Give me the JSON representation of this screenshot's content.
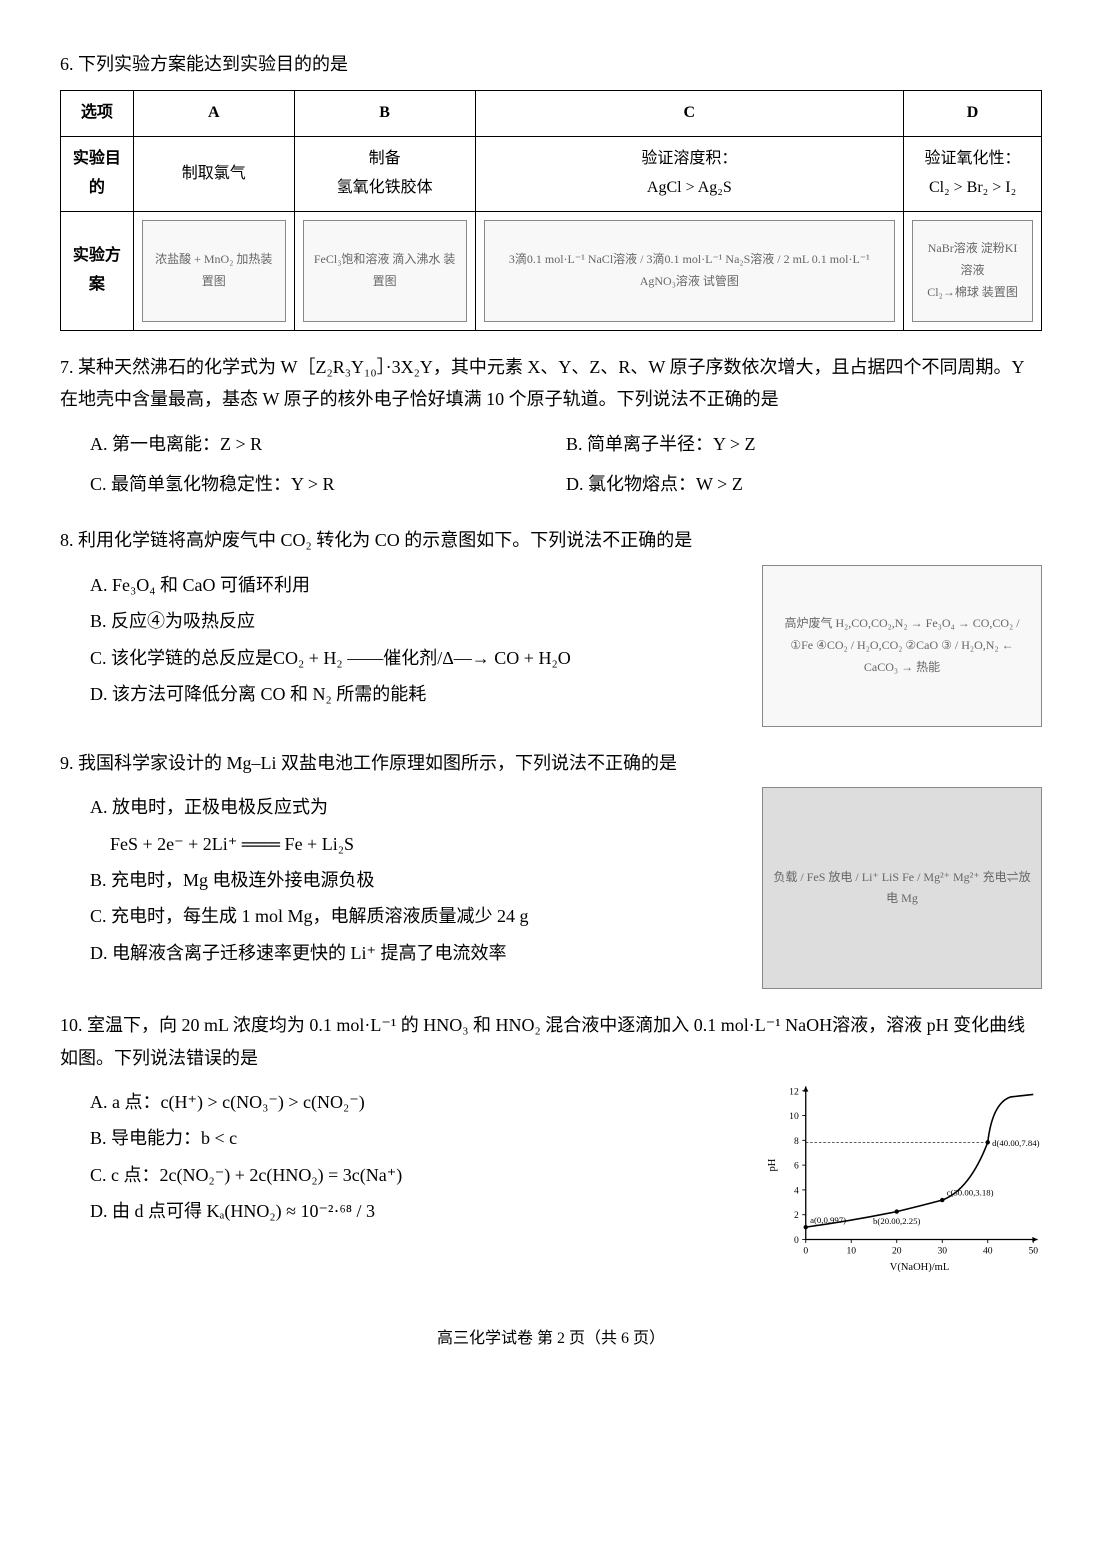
{
  "q6": {
    "stem": "6. 下列实验方案能达到实验目的的是",
    "headers": [
      "选项",
      "A",
      "B",
      "C",
      "D"
    ],
    "row1_label": "实验目的",
    "row1": [
      "制取氯气",
      "制备\n氢氧化铁胶体",
      "验证溶度积：\nAgCl > Ag₂S",
      "验证氧化性：\nCl₂ > Br₂ > I₂"
    ],
    "row2_label": "实验方案",
    "diagA": "浓盐酸 + MnO₂ 加热装置图",
    "diagB": "FeCl₃饱和溶液 滴入沸水 装置图",
    "diagC": "3滴0.1 mol·L⁻¹ NaCl溶液 / 3滴0.1 mol·L⁻¹ Na₂S溶液 / 2 mL 0.1 mol·L⁻¹ AgNO₃溶液 试管图",
    "diagD": "NaBr溶液 淀粉KI溶液\nCl₂→棉球 装置图"
  },
  "q7": {
    "stem": "7. 某种天然沸石的化学式为 W［Z₂R₃Y₁₀］·3X₂Y，其中元素 X、Y、Z、R、W 原子序数依次增大，且占据四个不同周期。Y 在地壳中含量最高，基态 W 原子的核外电子恰好填满 10 个原子轨道。下列说法不正确的是",
    "optA": "A. 第一电离能：Z > R",
    "optB": "B. 简单离子半径：Y > Z",
    "optC": "C. 最简单氢化物稳定性：Y > R",
    "optD": "D. 氯化物熔点：W > Z"
  },
  "q8": {
    "stem": "8. 利用化学链将高炉废气中 CO₂ 转化为 CO 的示意图如下。下列说法不正确的是",
    "optA": "A. Fe₃O₄ 和 CaO 可循环利用",
    "optB": "B. 反应④为吸热反应",
    "optC": "C. 该化学链的总反应是CO₂ + H₂ ——催化剂/Δ—→ CO + H₂O",
    "optD": "D. 该方法可降低分离 CO 和 N₂ 所需的能耗",
    "diagram": "高炉废气 H₂,CO,CO₂,N₂ → Fe₃O₄ → CO,CO₂ / ①Fe ④CO₂ / H₂O,CO₂ ②CaO ③ / H₂O,N₂ ← CaCO₃ → 热能"
  },
  "q9": {
    "stem": "9. 我国科学家设计的 Mg–Li 双盐电池工作原理如图所示，下列说法不正确的是",
    "optA": "A. 放电时，正极电极反应式为",
    "optA2": "FeS + 2e⁻ + 2Li⁺ ═══ Fe + Li₂S",
    "optB": "B. 充电时，Mg 电极连外接电源负极",
    "optC": "C. 充电时，每生成 1 mol Mg，电解质溶液质量减少 24 g",
    "optD": "D. 电解液含离子迁移速率更快的 Li⁺ 提高了电流效率",
    "diagram": "负载 / FeS 放电 / Li⁺ LiS Fe / Mg²⁺ Mg²⁺ 充电⇌放电 Mg"
  },
  "q10": {
    "stem": "10. 室温下，向 20 mL 浓度均为 0.1 mol·L⁻¹ 的 HNO₃ 和 HNO₂ 混合液中逐滴加入 0.1 mol·L⁻¹ NaOH溶液，溶液 pH 变化曲线如图。下列说法错误的是",
    "optA": "A. a 点：c(H⁺) > c(NO₃⁻) > c(NO₂⁻)",
    "optB": "B. 导电能力：b < c",
    "optC": "C. c 点：2c(NO₂⁻) + 2c(HNO₂) = 3c(Na⁺)",
    "optD": "D. 由 d 点可得 Kₐ(HNO₂) ≈ 10⁻²·⁶⁸ / 3",
    "chart": {
      "xlabel": "V(NaOH)/mL",
      "ylabel": "pH",
      "xlim": [
        0,
        50
      ],
      "ylim": [
        0,
        12
      ],
      "xticks": [
        0,
        10,
        20,
        30,
        40,
        50
      ],
      "yticks": [
        0,
        2,
        4,
        6,
        8,
        10,
        12
      ],
      "points": {
        "a": {
          "x": 0,
          "y": 0.997,
          "label": "a(0,0.997)"
        },
        "b": {
          "x": 20.0,
          "y": 2.25,
          "label": "b(20.00,2.25)"
        },
        "c": {
          "x": 30.0,
          "y": 3.18,
          "label": "c(30.00,3.18)"
        },
        "d": {
          "x": 40.0,
          "y": 7.84,
          "label": "d(40.00,7.84)"
        }
      },
      "curve_color": "#000",
      "bg": "#fff"
    }
  },
  "footer": "高三化学试卷  第 2 页（共 6 页）"
}
